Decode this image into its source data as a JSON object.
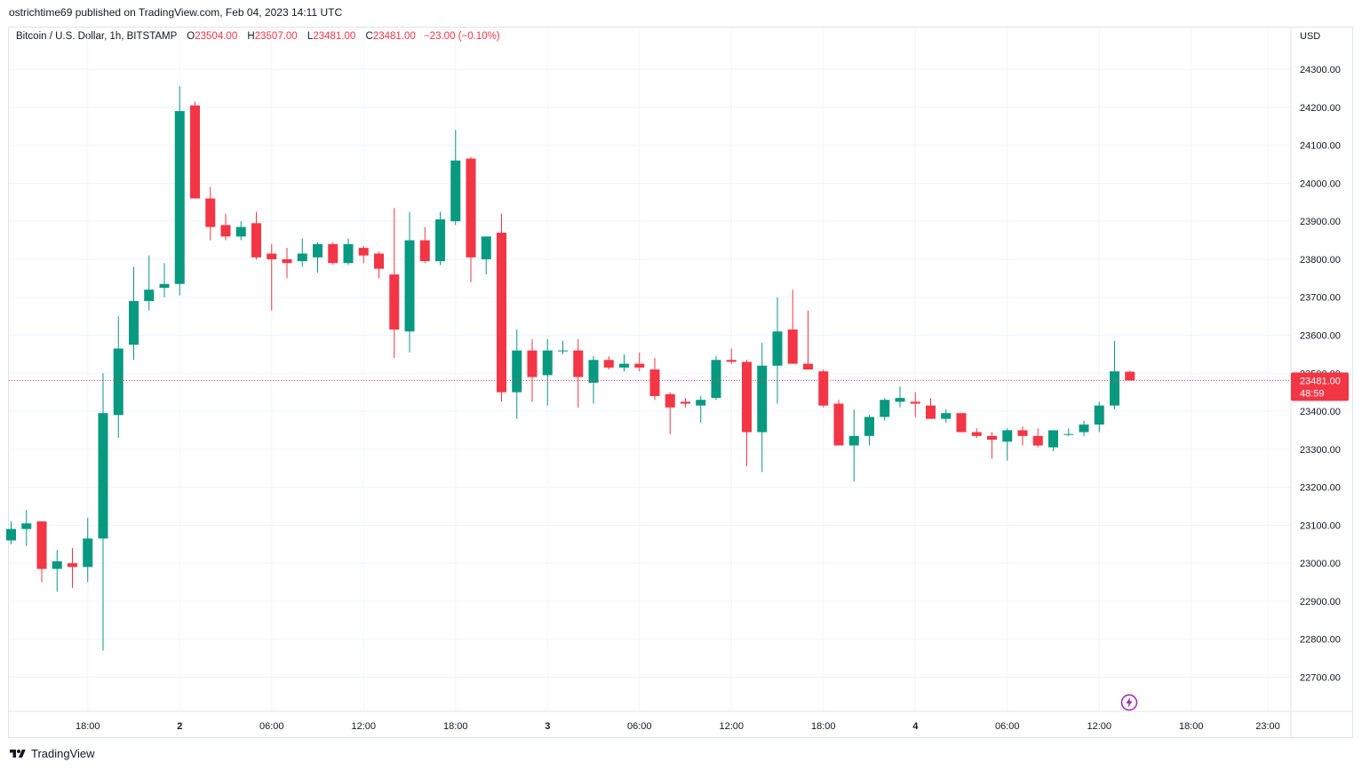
{
  "header": {
    "published": "ostrichtime69 published on TradingView.com, Feb 04, 2023 14:11 UTC"
  },
  "legend": {
    "symbol": "Bitcoin / U.S. Dollar, 1h, BITSTAMP",
    "o_label": "O",
    "o_value": "23504.00",
    "h_label": "H",
    "h_value": "23507.00",
    "l_label": "L",
    "l_value": "23481.00",
    "c_label": "C",
    "c_value": "23481.00",
    "change": "−23.00 (−0.10%)"
  },
  "price_scale": {
    "currency": "USD"
  },
  "last_price": {
    "value": "23481.00",
    "countdown": "48:59"
  },
  "footer": {
    "brand": "TradingView"
  },
  "icons": {
    "brand": "tradingview-logo-icon",
    "alert": "lightning-icon"
  },
  "colors": {
    "up": "#089981",
    "down": "#f23645",
    "grid": "#f0f3fa",
    "accent": "#9c27b0"
  },
  "chart_data": {
    "type": "candlestick",
    "y_ticks": [
      22700,
      22800,
      22900,
      23000,
      23100,
      23200,
      23300,
      23400,
      23500,
      23600,
      23700,
      23800,
      23900,
      24000,
      24100,
      24200,
      24300
    ],
    "ylim": [
      22610,
      24410
    ],
    "x_tick_labels": [
      {
        "label": "18:00",
        "bar": 5
      },
      {
        "label": "2",
        "bar": 11
      },
      {
        "label": "06:00",
        "bar": 17
      },
      {
        "label": "12:00",
        "bar": 23
      },
      {
        "label": "18:00",
        "bar": 29
      },
      {
        "label": "3",
        "bar": 35
      },
      {
        "label": "06:00",
        "bar": 41
      },
      {
        "label": "12:00",
        "bar": 47
      },
      {
        "label": "18:00",
        "bar": 53
      },
      {
        "label": "4",
        "bar": 59
      },
      {
        "label": "06:00",
        "bar": 65
      },
      {
        "label": "12:00",
        "bar": 71
      },
      {
        "label": "18:00",
        "bar": 77
      },
      {
        "label": "23:00",
        "bar": 82
      }
    ],
    "candles": [
      {
        "o": 23060,
        "h": 23110,
        "l": 23050,
        "c": 23090
      },
      {
        "o": 23090,
        "h": 23140,
        "l": 23045,
        "c": 23105
      },
      {
        "o": 23110,
        "h": 23110,
        "l": 22950,
        "c": 22985
      },
      {
        "o": 22985,
        "h": 23035,
        "l": 22925,
        "c": 23005
      },
      {
        "o": 23000,
        "h": 23040,
        "l": 22935,
        "c": 22990
      },
      {
        "o": 22990,
        "h": 23120,
        "l": 22950,
        "c": 23065
      },
      {
        "o": 23065,
        "h": 23500,
        "l": 22770,
        "c": 23395
      },
      {
        "o": 23390,
        "h": 23650,
        "l": 23330,
        "c": 23565
      },
      {
        "o": 23575,
        "h": 23780,
        "l": 23535,
        "c": 23690
      },
      {
        "o": 23690,
        "h": 23810,
        "l": 23665,
        "c": 23720
      },
      {
        "o": 23725,
        "h": 23790,
        "l": 23700,
        "c": 23735
      },
      {
        "o": 23735,
        "h": 24255,
        "l": 23705,
        "c": 24190
      },
      {
        "o": 24205,
        "h": 24215,
        "l": 23960,
        "c": 23960
      },
      {
        "o": 23960,
        "h": 23990,
        "l": 23850,
        "c": 23885
      },
      {
        "o": 23890,
        "h": 23920,
        "l": 23850,
        "c": 23860
      },
      {
        "o": 23860,
        "h": 23900,
        "l": 23850,
        "c": 23885
      },
      {
        "o": 23895,
        "h": 23925,
        "l": 23800,
        "c": 23805
      },
      {
        "o": 23815,
        "h": 23840,
        "l": 23665,
        "c": 23800
      },
      {
        "o": 23800,
        "h": 23830,
        "l": 23750,
        "c": 23790
      },
      {
        "o": 23795,
        "h": 23855,
        "l": 23780,
        "c": 23815
      },
      {
        "o": 23805,
        "h": 23845,
        "l": 23765,
        "c": 23840
      },
      {
        "o": 23840,
        "h": 23845,
        "l": 23785,
        "c": 23790
      },
      {
        "o": 23790,
        "h": 23855,
        "l": 23785,
        "c": 23840
      },
      {
        "o": 23830,
        "h": 23835,
        "l": 23790,
        "c": 23810
      },
      {
        "o": 23815,
        "h": 23820,
        "l": 23750,
        "c": 23775
      },
      {
        "o": 23760,
        "h": 23935,
        "l": 23540,
        "c": 23615
      },
      {
        "o": 23610,
        "h": 23925,
        "l": 23555,
        "c": 23850
      },
      {
        "o": 23850,
        "h": 23885,
        "l": 23790,
        "c": 23795
      },
      {
        "o": 23795,
        "h": 23925,
        "l": 23785,
        "c": 23905
      },
      {
        "o": 23900,
        "h": 24140,
        "l": 23890,
        "c": 24060
      },
      {
        "o": 24065,
        "h": 24070,
        "l": 23740,
        "c": 23805
      },
      {
        "o": 23800,
        "h": 23860,
        "l": 23760,
        "c": 23860
      },
      {
        "o": 23870,
        "h": 23920,
        "l": 23425,
        "c": 23450
      },
      {
        "o": 23450,
        "h": 23615,
        "l": 23380,
        "c": 23560
      },
      {
        "o": 23560,
        "h": 23590,
        "l": 23425,
        "c": 23490
      },
      {
        "o": 23495,
        "h": 23590,
        "l": 23415,
        "c": 23560
      },
      {
        "o": 23560,
        "h": 23585,
        "l": 23550,
        "c": 23560
      },
      {
        "o": 23560,
        "h": 23590,
        "l": 23410,
        "c": 23490
      },
      {
        "o": 23475,
        "h": 23545,
        "l": 23420,
        "c": 23535
      },
      {
        "o": 23535,
        "h": 23545,
        "l": 23510,
        "c": 23515
      },
      {
        "o": 23515,
        "h": 23550,
        "l": 23505,
        "c": 23525
      },
      {
        "o": 23525,
        "h": 23555,
        "l": 23505,
        "c": 23515
      },
      {
        "o": 23510,
        "h": 23540,
        "l": 23430,
        "c": 23440
      },
      {
        "o": 23445,
        "h": 23450,
        "l": 23340,
        "c": 23410
      },
      {
        "o": 23425,
        "h": 23435,
        "l": 23410,
        "c": 23420
      },
      {
        "o": 23415,
        "h": 23440,
        "l": 23370,
        "c": 23430
      },
      {
        "o": 23435,
        "h": 23545,
        "l": 23430,
        "c": 23535
      },
      {
        "o": 23535,
        "h": 23565,
        "l": 23525,
        "c": 23530
      },
      {
        "o": 23530,
        "h": 23535,
        "l": 23255,
        "c": 23345
      },
      {
        "o": 23345,
        "h": 23580,
        "l": 23240,
        "c": 23520
      },
      {
        "o": 23520,
        "h": 23700,
        "l": 23420,
        "c": 23610
      },
      {
        "o": 23615,
        "h": 23720,
        "l": 23525,
        "c": 23525
      },
      {
        "o": 23525,
        "h": 23665,
        "l": 23510,
        "c": 23510
      },
      {
        "o": 23505,
        "h": 23510,
        "l": 23410,
        "c": 23415
      },
      {
        "o": 23420,
        "h": 23430,
        "l": 23310,
        "c": 23310
      },
      {
        "o": 23310,
        "h": 23405,
        "l": 23215,
        "c": 23335
      },
      {
        "o": 23335,
        "h": 23390,
        "l": 23310,
        "c": 23385
      },
      {
        "o": 23385,
        "h": 23435,
        "l": 23375,
        "c": 23430
      },
      {
        "o": 23425,
        "h": 23465,
        "l": 23410,
        "c": 23435
      },
      {
        "o": 23425,
        "h": 23450,
        "l": 23385,
        "c": 23420
      },
      {
        "o": 23415,
        "h": 23435,
        "l": 23380,
        "c": 23380
      },
      {
        "o": 23380,
        "h": 23405,
        "l": 23370,
        "c": 23395
      },
      {
        "o": 23395,
        "h": 23395,
        "l": 23345,
        "c": 23345
      },
      {
        "o": 23345,
        "h": 23355,
        "l": 23330,
        "c": 23335
      },
      {
        "o": 23335,
        "h": 23345,
        "l": 23275,
        "c": 23325
      },
      {
        "o": 23320,
        "h": 23355,
        "l": 23270,
        "c": 23350
      },
      {
        "o": 23350,
        "h": 23360,
        "l": 23310,
        "c": 23335
      },
      {
        "o": 23335,
        "h": 23355,
        "l": 23305,
        "c": 23310
      },
      {
        "o": 23305,
        "h": 23350,
        "l": 23295,
        "c": 23350
      },
      {
        "o": 23340,
        "h": 23355,
        "l": 23335,
        "c": 23340
      },
      {
        "o": 23345,
        "h": 23375,
        "l": 23335,
        "c": 23365
      },
      {
        "o": 23365,
        "h": 23425,
        "l": 23345,
        "c": 23415
      },
      {
        "o": 23415,
        "h": 23585,
        "l": 23405,
        "c": 23505
      },
      {
        "o": 23504,
        "h": 23507,
        "l": 23481,
        "c": 23481
      }
    ]
  }
}
